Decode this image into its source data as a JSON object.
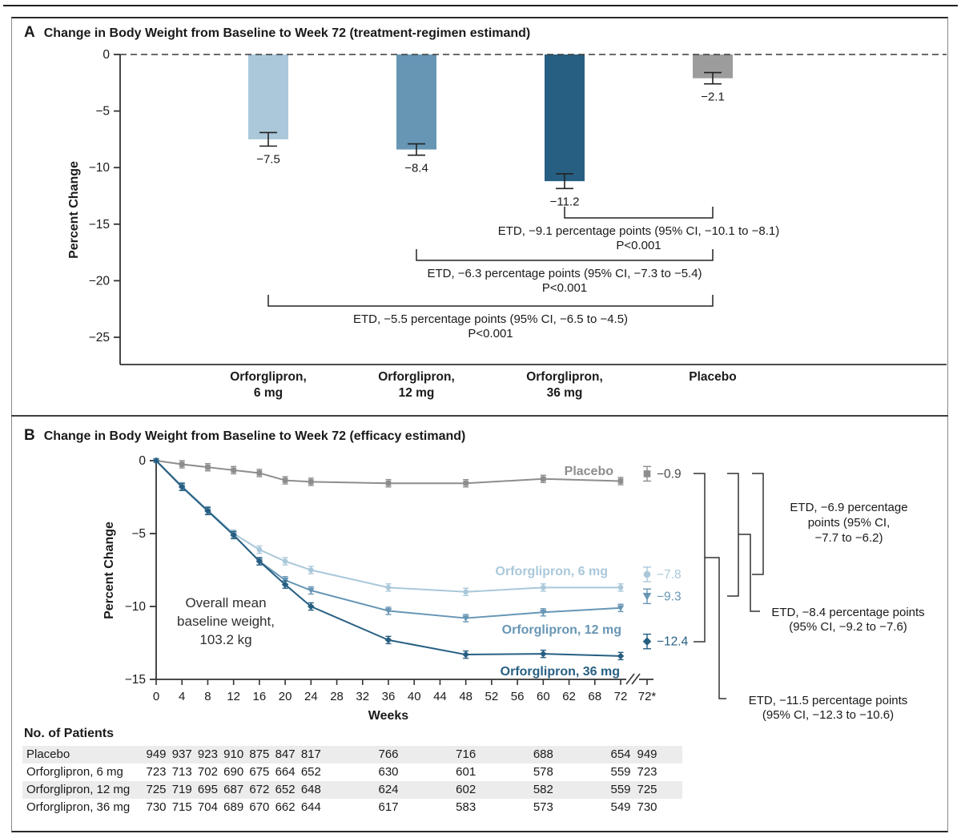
{
  "colors": {
    "light": "#aac8da",
    "medium": "#6796b5",
    "dark": "#275f82",
    "gray": "#8d8d8d",
    "placebo_bar": "#9c9c9c",
    "text": "#1a1a1a"
  },
  "figure": {
    "panel_a": {
      "label": "A",
      "title": "Change in Body Weight from Baseline to Week 72 (treatment-regimen estimand)"
    },
    "panel_b": {
      "label": "B",
      "title": "Change in Body Weight from Baseline to Week 72 (efficacy estimand)"
    }
  },
  "chart_data": [
    {
      "type": "bar",
      "title": "Change in Body Weight from Baseline to Week 72 (treatment-regimen estimand)",
      "ylabel": "Percent Change",
      "ylim": [
        -27.5,
        0
      ],
      "yticks": [
        0,
        -5,
        -10,
        -15,
        -20,
        -25
      ],
      "ytick_labels": [
        "0",
        "−5",
        "−10",
        "−15",
        "−20",
        "−25"
      ],
      "categories": [
        [
          "Orforglipron,",
          "6 mg"
        ],
        [
          "Orforglipron,",
          "12 mg"
        ],
        [
          "Orforglipron,",
          "36 mg"
        ],
        [
          "Placebo"
        ]
      ],
      "category_ids": [
        "orforglipron-6mg",
        "orforglipron-12mg",
        "orforglipron-36mg",
        "placebo"
      ],
      "values": [
        -7.5,
        -8.4,
        -11.2,
        -2.1
      ],
      "errors": [
        0.6,
        0.5,
        0.65,
        0.5
      ],
      "value_labels": [
        "−7.5",
        "−8.4",
        "−11.2",
        "−2.1"
      ],
      "bar_colors": [
        "light",
        "medium",
        "dark",
        "placebo_bar"
      ],
      "baseline_dashed": true,
      "comparisons": [
        {
          "from": 2,
          "to": 3,
          "line1": "ETD, −9.1 percentage points (95% CI, −10.1 to −8.1)",
          "line2": "P<0.001"
        },
        {
          "from": 1,
          "to": 3,
          "line1": "ETD, −6.3 percentage points (95% CI, −7.3 to −5.4)",
          "line2": "P<0.001"
        },
        {
          "from": 0,
          "to": 3,
          "line1": "ETD, −5.5 percentage points (95% CI, −6.5 to −4.5)",
          "line2": "P<0.001"
        }
      ]
    },
    {
      "type": "line",
      "title": "Change in Body Weight from Baseline to Week 72 (efficacy estimand)",
      "xlabel": "Weeks",
      "ylabel": "Percent Change",
      "ylim": [
        -15,
        0
      ],
      "yticks": [
        0,
        -5,
        -10,
        -15
      ],
      "ytick_labels": [
        "0",
        "−5",
        "−10",
        "−15"
      ],
      "xtick_labels": [
        "0",
        "4",
        "8",
        "12",
        "16",
        "20",
        "24",
        "28",
        "32",
        "36",
        "40",
        "44",
        "48",
        "52",
        "56",
        "60",
        "62",
        "68",
        "72",
        "72*"
      ],
      "x": [
        0,
        4,
        8,
        12,
        16,
        20,
        24,
        36,
        48,
        60,
        72
      ],
      "series": [
        {
          "id": "placebo",
          "name": "Placebo",
          "color_key": "gray",
          "marker": "square",
          "values": [
            0,
            -0.25,
            -0.45,
            -0.65,
            -0.85,
            -1.35,
            -1.45,
            -1.55,
            -1.55,
            -1.25,
            -1.4
          ],
          "final_value": -0.9,
          "final_label": "−0.9"
        },
        {
          "id": "orforglipron-6mg",
          "name": "Orforglipron, 6 mg",
          "color_key": "light",
          "marker": "circle",
          "values": [
            0,
            -1.75,
            -3.4,
            -5.0,
            -6.1,
            -6.9,
            -7.5,
            -8.7,
            -9.0,
            -8.7,
            -8.7
          ],
          "final_value": -7.8,
          "final_label": "−7.8"
        },
        {
          "id": "orforglipron-12mg",
          "name": "Orforglipron, 12 mg",
          "color_key": "medium",
          "marker": "triangle-down",
          "values": [
            0,
            -1.8,
            -3.45,
            -5.1,
            -6.9,
            -8.2,
            -8.9,
            -10.3,
            -10.8,
            -10.4,
            -10.1
          ],
          "final_value": -9.3,
          "final_label": "−9.3"
        },
        {
          "id": "orforglipron-36mg",
          "name": "Orforglipron, 36 mg",
          "color_key": "dark",
          "marker": "diamond",
          "values": [
            0,
            -1.8,
            -3.45,
            -5.1,
            -6.9,
            -8.5,
            -10.0,
            -12.3,
            -13.3,
            -13.25,
            -13.4
          ],
          "final_value": -12.4,
          "final_label": "−12.4"
        }
      ],
      "annotation": [
        "Overall mean",
        "baseline weight,",
        "103.2 kg"
      ],
      "etd_annotations": [
        {
          "lines": [
            "ETD, −6.9 percentage",
            "points (95% CI,",
            "−7.7 to −6.2)"
          ]
        },
        {
          "lines": [
            "ETD, −8.4 percentage points",
            "(95% CI, −9.2 to −7.6)"
          ]
        },
        {
          "lines": [
            "ETD, −11.5 percentage points",
            "(95% CI, −12.3 to −10.6)"
          ]
        }
      ]
    }
  ],
  "patients_table": {
    "title": "No. of Patients",
    "week_columns": [
      0,
      4,
      8,
      12,
      16,
      20,
      24,
      36,
      48,
      60,
      72,
      "72*"
    ],
    "rows": [
      {
        "label": "Placebo",
        "values": [
          949,
          937,
          923,
          910,
          875,
          847,
          817,
          766,
          716,
          688,
          654,
          949
        ]
      },
      {
        "label": "Orforglipron, 6 mg",
        "values": [
          723,
          713,
          702,
          690,
          675,
          664,
          652,
          630,
          601,
          578,
          559,
          723
        ]
      },
      {
        "label": "Orforglipron, 12 mg",
        "values": [
          725,
          719,
          695,
          687,
          672,
          652,
          648,
          624,
          602,
          582,
          559,
          725
        ]
      },
      {
        "label": "Orforglipron, 36 mg",
        "values": [
          730,
          715,
          704,
          689,
          670,
          662,
          644,
          617,
          583,
          573,
          549,
          730
        ]
      }
    ]
  }
}
